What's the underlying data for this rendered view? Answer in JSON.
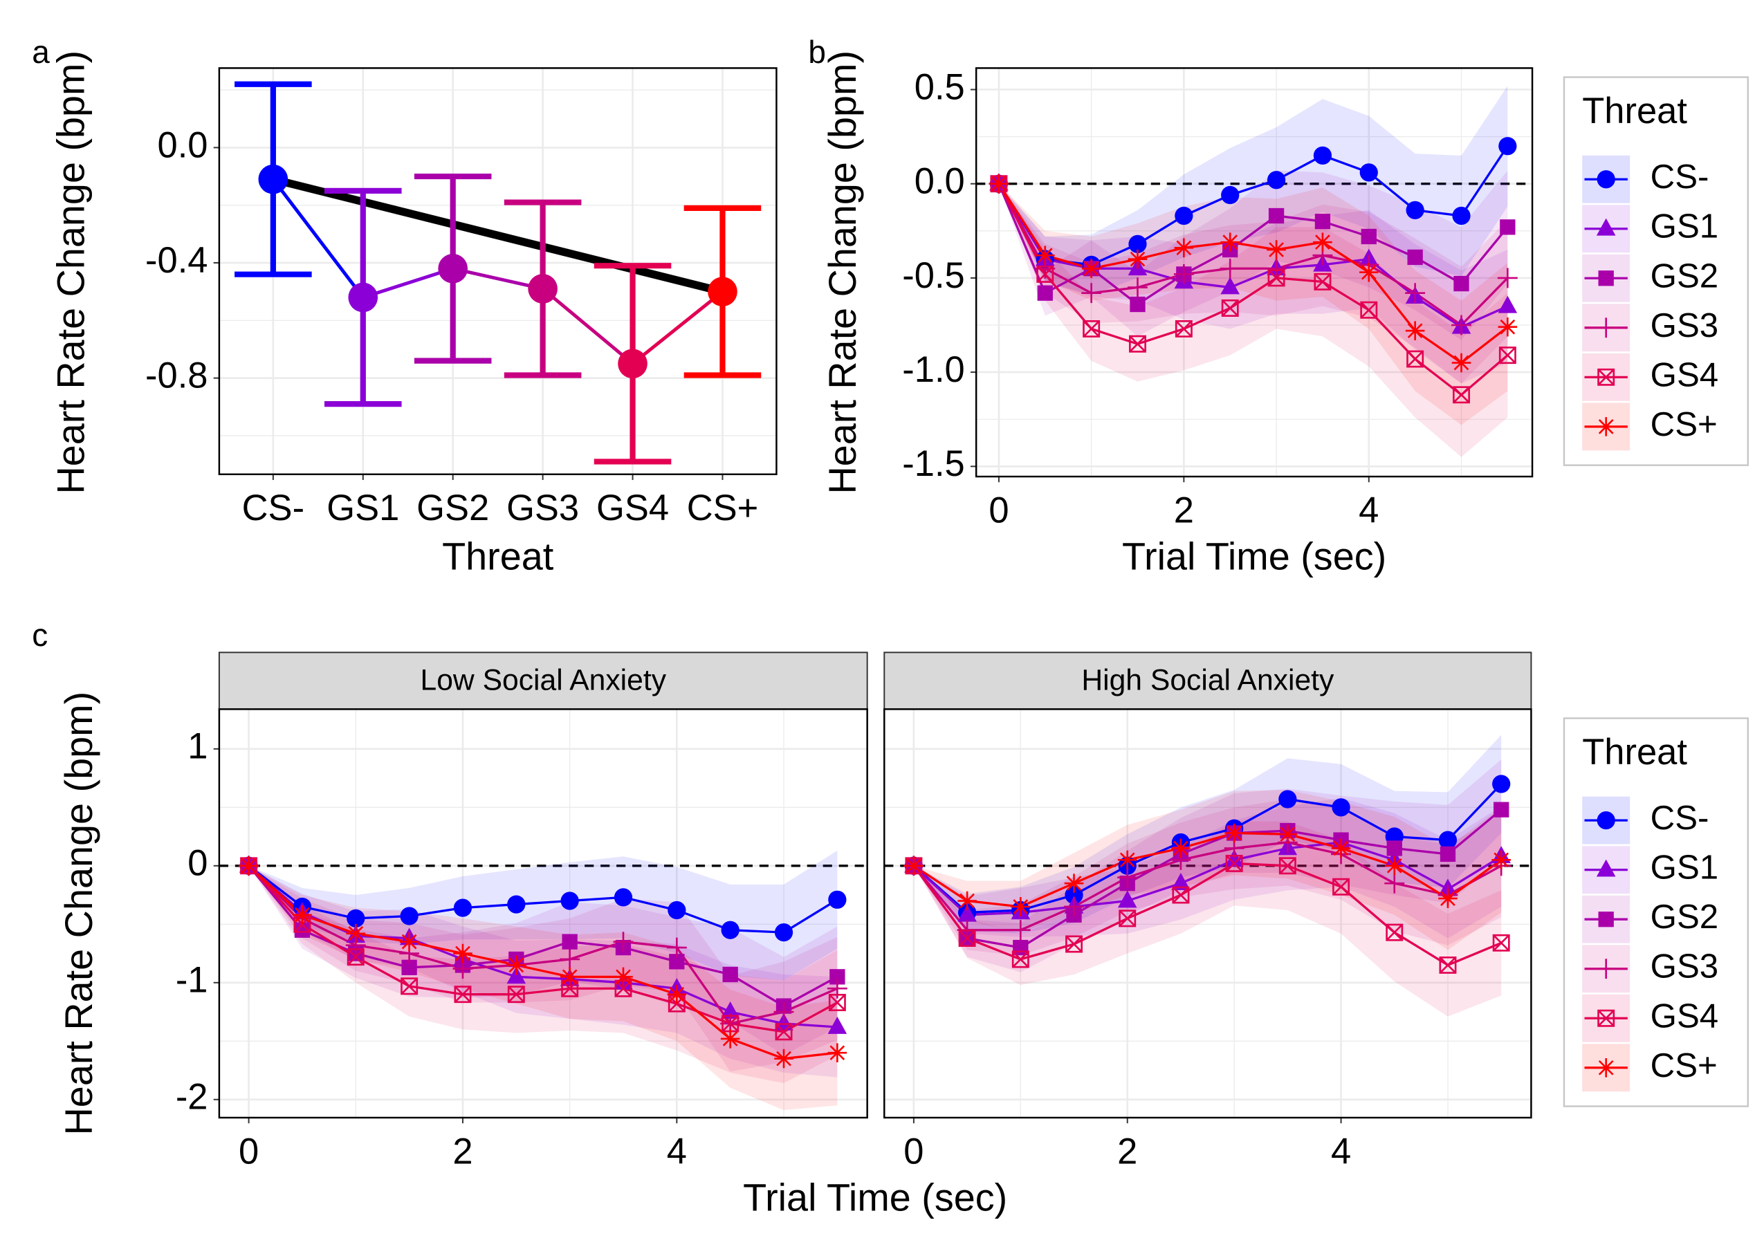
{
  "chart_data": [
    {
      "type": "errorbar",
      "panel_label": "a",
      "ylabel": "Heart Rate Change (bpm)",
      "xlabel": "Threat",
      "categories": [
        "CS-",
        "GS1",
        "GS2",
        "GS3",
        "GS4",
        "CS+"
      ],
      "values": [
        -0.11,
        -0.52,
        -0.42,
        -0.49,
        -0.75,
        -0.5
      ],
      "errors": [
        0.33,
        0.37,
        0.32,
        0.3,
        0.34,
        0.29
      ],
      "colors": [
        "#0000ff",
        "#8b00d6",
        "#aa00aa",
        "#c8007f",
        "#e30052",
        "#ff0000"
      ],
      "trend": {
        "color": "#000000",
        "values": [
          -0.11,
          -0.5
        ]
      },
      "ylim": [
        -1.134,
        0.276
      ],
      "yticks": [
        {
          "value": 0,
          "label": "0.0"
        },
        -0.4,
        -0.8
      ],
      "grid": true
    },
    {
      "type": "line",
      "panel_label": "b",
      "ylabel": "Heart Rate Change (bpm)",
      "xlabel": "Trial Time (sec)",
      "x": [
        0,
        0.5,
        1,
        1.5,
        2,
        2.5,
        3,
        3.5,
        4,
        4.5,
        5,
        5.5
      ],
      "xlim": [
        -0.245,
        5.767
      ],
      "xticks": [
        0,
        2,
        4
      ],
      "ylim": [
        -1.554,
        0.614
      ],
      "yticks": [
        0.5,
        {
          "value": 0,
          "label": "0.0"
        },
        -0.5,
        {
          "value": -1,
          "label": "-1.0"
        },
        -1.5
      ],
      "hline": 0,
      "grid": true,
      "legend_title": "Threat",
      "legend": "right",
      "series": [
        {
          "name": "CS-",
          "color": "#0000ff",
          "shape": "circle",
          "values": [
            0,
            -0.4,
            -0.43,
            -0.32,
            -0.17,
            -0.06,
            0.02,
            0.15,
            0.06,
            -0.14,
            -0.17,
            0.2
          ],
          "errors": [
            0,
            0.12,
            0.16,
            0.18,
            0.22,
            0.25,
            0.28,
            0.3,
            0.3,
            0.3,
            0.32,
            0.32
          ]
        },
        {
          "name": "GS1",
          "color": "#8b00d6",
          "shape": "triangle",
          "values": [
            0,
            -0.4,
            -0.45,
            -0.45,
            -0.52,
            -0.55,
            -0.45,
            -0.43,
            -0.4,
            -0.6,
            -0.76,
            -0.65
          ],
          "errors": [
            0,
            0.12,
            0.15,
            0.17,
            0.2,
            0.22,
            0.24,
            0.26,
            0.26,
            0.28,
            0.3,
            0.3
          ]
        },
        {
          "name": "GS2",
          "color": "#aa00aa",
          "shape": "square",
          "values": [
            0,
            -0.58,
            -0.45,
            -0.64,
            -0.48,
            -0.35,
            -0.17,
            -0.2,
            -0.28,
            -0.39,
            -0.53,
            -0.23
          ],
          "errors": [
            0,
            0.12,
            0.15,
            0.17,
            0.2,
            0.22,
            0.24,
            0.26,
            0.27,
            0.28,
            0.3,
            0.3
          ]
        },
        {
          "name": "GS3",
          "color": "#c8007f",
          "shape": "plus",
          "values": [
            0,
            -0.45,
            -0.58,
            -0.55,
            -0.48,
            -0.45,
            -0.45,
            -0.38,
            -0.43,
            -0.58,
            -0.75,
            -0.5
          ],
          "errors": [
            0,
            0.13,
            0.16,
            0.18,
            0.21,
            0.23,
            0.25,
            0.27,
            0.28,
            0.29,
            0.31,
            0.31
          ]
        },
        {
          "name": "GS4",
          "color": "#e30052",
          "shape": "square-cross",
          "values": [
            0,
            -0.48,
            -0.77,
            -0.85,
            -0.77,
            -0.66,
            -0.5,
            -0.52,
            -0.67,
            -0.93,
            -1.12,
            -0.91
          ],
          "errors": [
            0,
            0.14,
            0.17,
            0.2,
            0.22,
            0.25,
            0.27,
            0.29,
            0.3,
            0.31,
            0.33,
            0.33
          ]
        },
        {
          "name": "CS+",
          "color": "#ff0000",
          "shape": "asterisk",
          "values": [
            0,
            -0.38,
            -0.45,
            -0.4,
            -0.34,
            -0.31,
            -0.35,
            -0.31,
            -0.47,
            -0.78,
            -0.95,
            -0.76
          ],
          "errors": [
            0,
            0.13,
            0.17,
            0.19,
            0.22,
            0.24,
            0.27,
            0.29,
            0.3,
            0.32,
            0.33,
            0.34
          ]
        }
      ]
    },
    {
      "type": "faceted-line",
      "panel_label": "c",
      "ylabel": "Heart Rate Change (bpm)",
      "xlabel": "Trial Time (sec)",
      "x": [
        0,
        0.5,
        1,
        1.5,
        2,
        2.5,
        3,
        3.5,
        4,
        4.5,
        5,
        5.5
      ],
      "xlim": [
        -0.276,
        5.78
      ],
      "xticks": [
        0,
        2,
        4
      ],
      "ylim": [
        -2.155,
        1.34
      ],
      "yticks": [
        1,
        0,
        -1,
        -2
      ],
      "hline": 0,
      "grid": true,
      "legend_title": "Threat",
      "legend": "right",
      "facets": [
        {
          "title": "Low Social Anxiety",
          "series": [
            {
              "name": "CS-",
              "color": "#0000ff",
              "shape": "circle",
              "values": [
                0,
                -0.35,
                -0.45,
                -0.43,
                -0.36,
                -0.33,
                -0.3,
                -0.27,
                -0.38,
                -0.55,
                -0.57,
                -0.29
              ],
              "errors": [
                0,
                0.16,
                0.2,
                0.24,
                0.27,
                0.3,
                0.33,
                0.35,
                0.37,
                0.39,
                0.41,
                0.42
              ]
            },
            {
              "name": "GS1",
              "color": "#8b00d6",
              "shape": "triangle",
              "values": [
                0,
                -0.4,
                -0.6,
                -0.62,
                -0.8,
                -0.95,
                -0.97,
                -1,
                -1.05,
                -1.25,
                -1.35,
                -1.38
              ],
              "errors": [
                0,
                0.16,
                0.21,
                0.25,
                0.28,
                0.31,
                0.34,
                0.36,
                0.38,
                0.4,
                0.42,
                0.43
              ]
            },
            {
              "name": "GS2",
              "color": "#aa00aa",
              "shape": "square",
              "values": [
                0,
                -0.55,
                -0.75,
                -0.87,
                -0.85,
                -0.8,
                -0.65,
                -0.7,
                -0.82,
                -0.93,
                -1.2,
                -0.95
              ],
              "errors": [
                0,
                0.16,
                0.21,
                0.25,
                0.28,
                0.31,
                0.34,
                0.36,
                0.38,
                0.4,
                0.42,
                0.43
              ]
            },
            {
              "name": "GS3",
              "color": "#c8007f",
              "shape": "plus",
              "values": [
                0,
                -0.45,
                -0.68,
                -0.75,
                -0.88,
                -0.85,
                -0.8,
                -0.65,
                -0.7,
                -1.35,
                -1.25,
                -1.05
              ],
              "errors": [
                0,
                0.17,
                0.22,
                0.26,
                0.29,
                0.32,
                0.35,
                0.37,
                0.39,
                0.41,
                0.43,
                0.44
              ]
            },
            {
              "name": "GS4",
              "color": "#e30052",
              "shape": "square-cross",
              "values": [
                0,
                -0.5,
                -0.78,
                -1.03,
                -1.1,
                -1.1,
                -1.05,
                -1.05,
                -1.18,
                -1.35,
                -1.42,
                -1.17
              ],
              "errors": [
                0,
                0.17,
                0.22,
                0.26,
                0.3,
                0.33,
                0.36,
                0.38,
                0.4,
                0.42,
                0.44,
                0.45
              ]
            },
            {
              "name": "CS+",
              "color": "#ff0000",
              "shape": "asterisk",
              "values": [
                0,
                -0.42,
                -0.58,
                -0.65,
                -0.75,
                -0.85,
                -0.95,
                -0.95,
                -1.1,
                -1.48,
                -1.65,
                -1.6
              ],
              "errors": [
                0,
                0.17,
                0.22,
                0.26,
                0.3,
                0.33,
                0.36,
                0.38,
                0.4,
                0.42,
                0.44,
                0.45
              ]
            }
          ]
        },
        {
          "title": "High Social Anxiety",
          "series": [
            {
              "name": "CS-",
              "color": "#0000ff",
              "shape": "circle",
              "values": [
                0,
                -0.4,
                -0.38,
                -0.25,
                0,
                0.2,
                0.32,
                0.57,
                0.5,
                0.25,
                0.22,
                0.7
              ],
              "errors": [
                0,
                0.16,
                0.2,
                0.24,
                0.27,
                0.3,
                0.33,
                0.35,
                0.37,
                0.39,
                0.41,
                0.42
              ]
            },
            {
              "name": "GS1",
              "color": "#8b00d6",
              "shape": "triangle",
              "values": [
                0,
                -0.42,
                -0.4,
                -0.35,
                -0.3,
                -0.15,
                0.05,
                0.15,
                0.2,
                0.05,
                -0.2,
                0.08
              ],
              "errors": [
                0,
                0.16,
                0.21,
                0.25,
                0.28,
                0.31,
                0.34,
                0.36,
                0.38,
                0.4,
                0.42,
                0.43
              ]
            },
            {
              "name": "GS2",
              "color": "#aa00aa",
              "shape": "square",
              "values": [
                0,
                -0.62,
                -0.7,
                -0.42,
                -0.15,
                0.1,
                0.28,
                0.3,
                0.22,
                0.15,
                0.1,
                0.48
              ],
              "errors": [
                0,
                0.16,
                0.21,
                0.25,
                0.28,
                0.31,
                0.34,
                0.36,
                0.38,
                0.4,
                0.42,
                0.43
              ]
            },
            {
              "name": "GS3",
              "color": "#c8007f",
              "shape": "plus",
              "values": [
                0,
                -0.55,
                -0.55,
                -0.35,
                -0.1,
                0.05,
                0.15,
                0.2,
                0.1,
                -0.15,
                -0.25,
                0
              ],
              "errors": [
                0,
                0.17,
                0.22,
                0.26,
                0.29,
                0.32,
                0.35,
                0.37,
                0.39,
                0.41,
                0.43,
                0.44
              ]
            },
            {
              "name": "GS4",
              "color": "#e30052",
              "shape": "square-cross",
              "values": [
                0,
                -0.62,
                -0.8,
                -0.67,
                -0.45,
                -0.25,
                0.02,
                0,
                -0.18,
                -0.57,
                -0.85,
                -0.66
              ],
              "errors": [
                0,
                0.17,
                0.22,
                0.26,
                0.3,
                0.33,
                0.36,
                0.38,
                0.4,
                0.42,
                0.44,
                0.45
              ]
            },
            {
              "name": "CS+",
              "color": "#ff0000",
              "shape": "asterisk",
              "values": [
                0,
                -0.3,
                -0.35,
                -0.15,
                0.05,
                0.15,
                0.28,
                0.27,
                0.15,
                0,
                -0.28,
                0.05
              ],
              "errors": [
                0,
                0.17,
                0.22,
                0.26,
                0.3,
                0.33,
                0.36,
                0.38,
                0.4,
                0.42,
                0.44,
                0.45
              ]
            }
          ]
        }
      ]
    }
  ]
}
